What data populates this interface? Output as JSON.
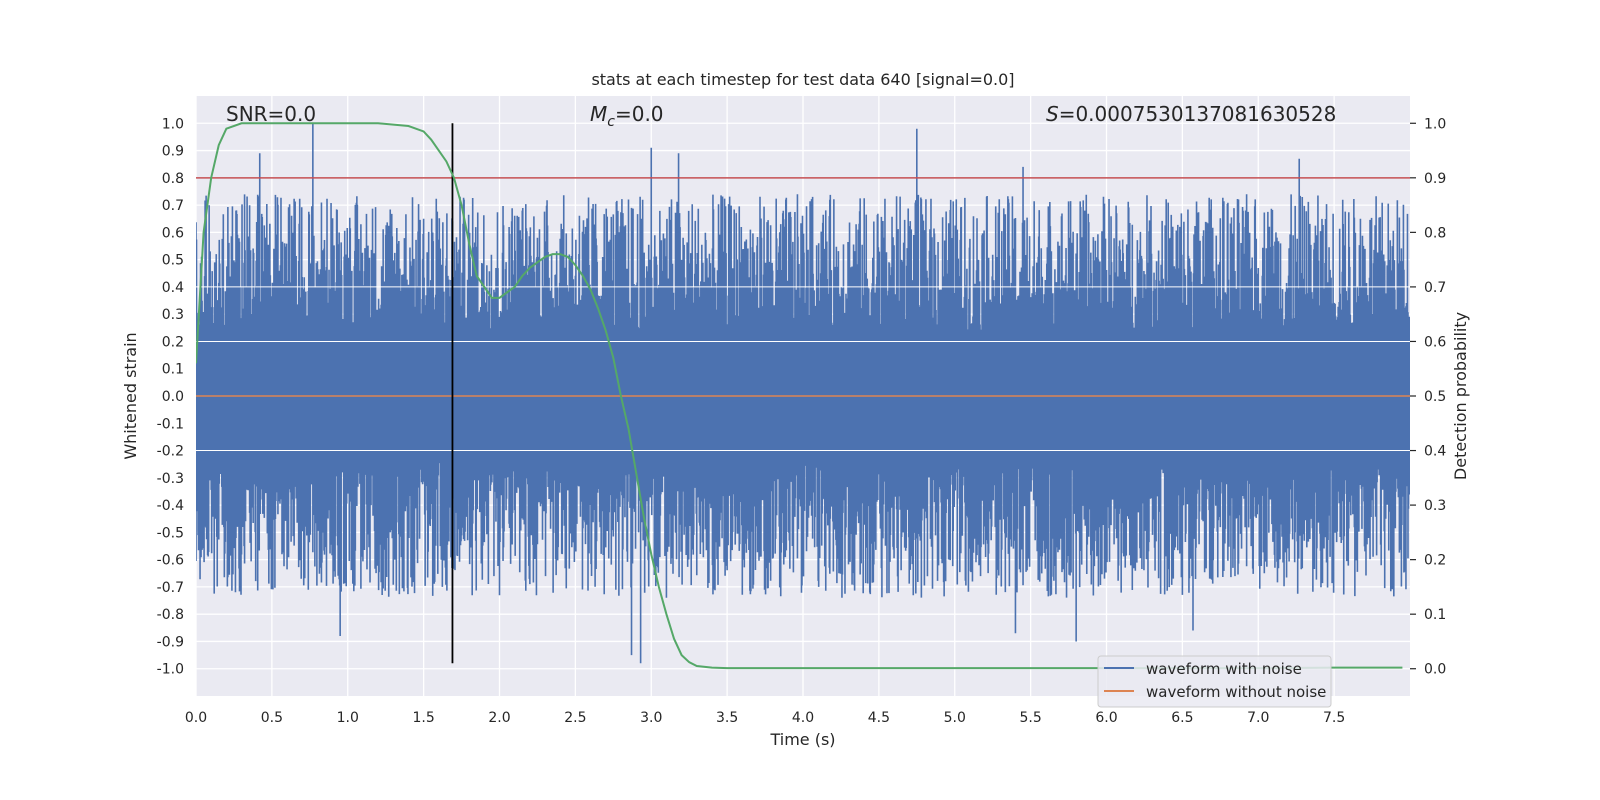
{
  "chart_data": {
    "type": "line",
    "title": "stats at each timestep for test data 640 [signal=0.0]",
    "xlabel": "Time (s)",
    "ylabel_left": "Whitened strain",
    "ylabel_right": "Detection probability",
    "xlim": [
      0.0,
      8.0
    ],
    "ylim_left": [
      -1.1,
      1.1
    ],
    "ylim_right": [
      -0.05,
      1.05
    ],
    "x_ticks": [
      0.0,
      0.5,
      1.0,
      1.5,
      2.0,
      2.5,
      3.0,
      3.5,
      4.0,
      4.5,
      5.0,
      5.5,
      6.0,
      6.5,
      7.0,
      7.5
    ],
    "x_tick_labels": [
      "0.0",
      "0.5",
      "1.0",
      "1.5",
      "2.0",
      "2.5",
      "3.0",
      "3.5",
      "4.0",
      "4.5",
      "5.0",
      "5.5",
      "6.0",
      "6.5",
      "7.0",
      "7.5"
    ],
    "y_left_ticks": [
      1.0,
      0.9,
      0.8,
      0.7,
      0.6,
      0.5,
      0.4,
      0.3,
      0.2,
      0.1,
      0.0,
      -0.1,
      -0.2,
      -0.3,
      -0.4,
      -0.5,
      -0.6,
      -0.7,
      -0.8,
      -0.9,
      -1.0
    ],
    "y_left_tick_labels": [
      "1.0",
      "0.9",
      "0.8",
      "0.7",
      "0.6",
      "0.5",
      "0.4",
      "0.3",
      "0.2",
      "0.1",
      "0.0",
      "-0.1",
      "-0.2",
      "-0.3",
      "-0.4",
      "-0.5",
      "-0.6",
      "-0.7",
      "-0.8",
      "-0.9",
      "-1.0"
    ],
    "y_right_ticks": [
      1.0,
      0.9,
      0.8,
      0.7,
      0.6,
      0.5,
      0.4,
      0.3,
      0.2,
      0.1,
      0.0
    ],
    "y_right_tick_labels": [
      "1.0",
      "0.9",
      "0.8",
      "0.7",
      "0.6",
      "0.5",
      "0.4",
      "0.3",
      "0.2",
      "0.1",
      "0.0"
    ],
    "annotations": {
      "snr": "SNR=0.0",
      "mc_symbol": "M",
      "mc_sub": "c",
      "mc_value": "=0.0",
      "s_symbol": "S",
      "s_value": "=0.0007530137081630528"
    },
    "threshold_line": {
      "y": 0.8,
      "axis": "left",
      "color": "#c44e52"
    },
    "vertical_marker": {
      "x": 1.69,
      "ymin": -0.98,
      "ymax": 1.0,
      "color": "#000000"
    },
    "series": [
      {
        "name": "waveform with noise",
        "axis": "left",
        "color": "#4c72b0",
        "style": "dense noise band",
        "spike_times": [
          0.42,
          0.77,
          3.0,
          3.18,
          4.75,
          5.45,
          7.27
        ],
        "spike_values": [
          0.89,
          1.0,
          0.91,
          0.89,
          0.98,
          0.84,
          0.87
        ],
        "dip_times": [
          0.95,
          2.87,
          2.93,
          5.4,
          5.8,
          6.57
        ],
        "dip_values": [
          -0.88,
          -0.95,
          -0.98,
          -0.87,
          -0.9,
          -0.86
        ]
      },
      {
        "name": "waveform without noise",
        "axis": "left",
        "color": "#dd8452",
        "x": [
          0.0,
          8.0
        ],
        "y": [
          0.0,
          0.0
        ]
      },
      {
        "name": "detection probability",
        "axis": "right",
        "color": "#55a868",
        "x": [
          0.0,
          0.05,
          0.1,
          0.15,
          0.2,
          0.3,
          0.4,
          0.5,
          0.6,
          0.8,
          1.0,
          1.2,
          1.4,
          1.5,
          1.55,
          1.6,
          1.65,
          1.7,
          1.75,
          1.8,
          1.85,
          1.9,
          1.95,
          2.0,
          2.05,
          2.1,
          2.15,
          2.2,
          2.25,
          2.3,
          2.35,
          2.4,
          2.45,
          2.5,
          2.55,
          2.6,
          2.65,
          2.7,
          2.75,
          2.8,
          2.85,
          2.9,
          2.95,
          3.0,
          3.05,
          3.1,
          3.15,
          3.2,
          3.25,
          3.3,
          3.4,
          3.5,
          4.0,
          5.0,
          6.0,
          7.0,
          7.5,
          7.95
        ],
        "y": [
          0.56,
          0.8,
          0.9,
          0.96,
          0.99,
          1.0,
          1.0,
          1.0,
          1.0,
          1.0,
          1.0,
          1.0,
          0.995,
          0.985,
          0.97,
          0.95,
          0.93,
          0.9,
          0.85,
          0.78,
          0.72,
          0.7,
          0.68,
          0.68,
          0.69,
          0.7,
          0.72,
          0.735,
          0.745,
          0.755,
          0.76,
          0.76,
          0.755,
          0.74,
          0.72,
          0.695,
          0.66,
          0.62,
          0.57,
          0.5,
          0.44,
          0.36,
          0.28,
          0.21,
          0.15,
          0.1,
          0.055,
          0.025,
          0.012,
          0.005,
          0.002,
          0.001,
          0.001,
          0.001,
          0.001,
          0.001,
          0.002,
          0.002
        ]
      }
    ],
    "legend": {
      "position": "bottom-right",
      "entries": [
        {
          "label": "waveform with noise",
          "color": "#4c72b0"
        },
        {
          "label": "waveform without noise",
          "color": "#dd8452"
        }
      ]
    },
    "grid": true,
    "colors": {
      "axes_bg": "#eaeaf2",
      "grid": "#ffffff",
      "text": "#262626"
    }
  }
}
